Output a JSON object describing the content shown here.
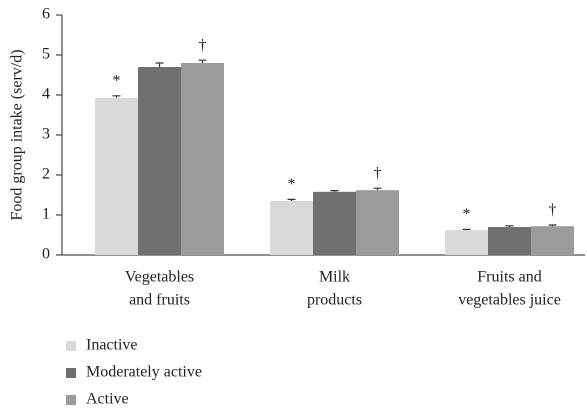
{
  "chart_data": {
    "type": "bar",
    "ylabel": "Food group intake (serv/d)",
    "categories": [
      [
        "Vegetables",
        "and fruits"
      ],
      [
        "Milk",
        "products"
      ],
      [
        "Fruits and",
        "vegetables juice"
      ]
    ],
    "series": [
      {
        "name": "Inactive",
        "color": "#d9d9d9",
        "values": [
          3.93,
          1.35,
          0.62
        ],
        "errors": [
          0.05,
          0.04,
          0.02
        ],
        "annotations": [
          "*",
          "*",
          "*"
        ]
      },
      {
        "name": "Moderately active",
        "color": "#707070",
        "values": [
          4.7,
          1.58,
          0.7
        ],
        "errors": [
          0.1,
          0.03,
          0.03
        ]
      },
      {
        "name": "Active",
        "color": "#9b9b9b",
        "values": [
          4.8,
          1.62,
          0.72
        ],
        "errors": [
          0.07,
          0.05,
          0.03
        ],
        "annotations": [
          "†",
          "†",
          "†"
        ]
      }
    ],
    "ylim": [
      0,
      6
    ],
    "yticks": [
      0,
      1,
      2,
      3,
      4,
      5,
      6
    ],
    "grid": false
  }
}
